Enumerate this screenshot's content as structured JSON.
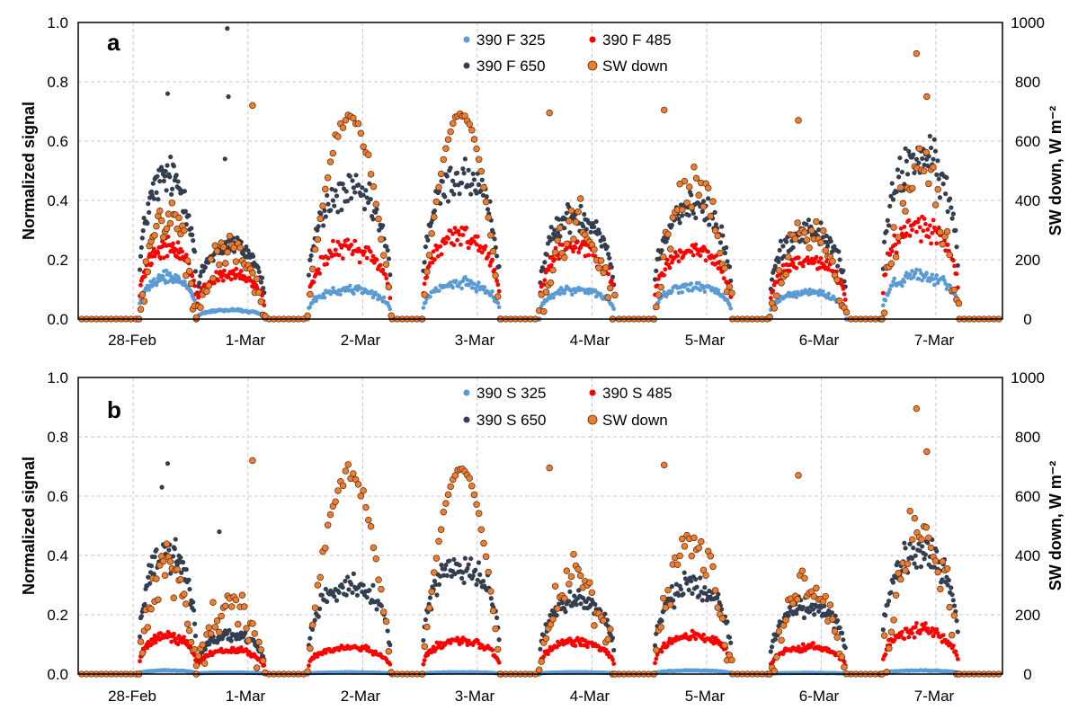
{
  "colors": {
    "s325": "#5b9bd5",
    "s485": "#ff0000",
    "s650": "#333f50",
    "sw": "#ed7d31",
    "sw_edge": "#5a2a0a",
    "grid": "#c8c8c8"
  },
  "days": [
    {
      "label": "28-Feb",
      "start": 0.05,
      "end": 0.55,
      "sw_peak": 370,
      "sw_scatter": 90,
      "s325": [
        0.14,
        0.012
      ],
      "s485": [
        0.25,
        0.13
      ],
      "s650": [
        0.48,
        0.41
      ]
    },
    {
      "label": "1-Mar",
      "start": 0.55,
      "end": 1.15,
      "sw_peak": 240,
      "sw_scatter": 80,
      "s325": [
        0.03,
        0.005
      ],
      "s485": [
        0.15,
        0.08
      ],
      "s650": [
        0.25,
        0.13
      ]
    },
    {
      "label": "2-Mar",
      "start": 1.52,
      "end": 2.25,
      "sw_peak": 680,
      "sw_scatter": 40,
      "s325": [
        0.1,
        0.006
      ],
      "s485": [
        0.24,
        0.09
      ],
      "s650": [
        0.43,
        0.3
      ]
    },
    {
      "label": "3-Mar",
      "start": 2.52,
      "end": 3.2,
      "sw_peak": 690,
      "sw_scatter": 10,
      "s325": [
        0.12,
        0.006
      ],
      "s485": [
        0.28,
        0.11
      ],
      "s650": [
        0.48,
        0.37
      ]
    },
    {
      "label": "4-Mar",
      "start": 3.54,
      "end": 4.2,
      "sw_peak": 330,
      "sw_scatter": 90,
      "s325": [
        0.1,
        0.006
      ],
      "s485": [
        0.25,
        0.11
      ],
      "s650": [
        0.35,
        0.25
      ]
    },
    {
      "label": "5-Mar",
      "start": 4.54,
      "end": 5.22,
      "sw_peak": 460,
      "sw_scatter": 90,
      "s325": [
        0.11,
        0.012
      ],
      "s485": [
        0.23,
        0.13
      ],
      "s650": [
        0.38,
        0.3
      ]
    },
    {
      "label": "6-Mar",
      "start": 5.55,
      "end": 6.22,
      "sw_peak": 300,
      "sw_scatter": 70,
      "s325": [
        0.09,
        0.004
      ],
      "s485": [
        0.2,
        0.09
      ],
      "s650": [
        0.3,
        0.23
      ]
    },
    {
      "label": "7-Mar",
      "start": 6.53,
      "end": 7.2,
      "sw_peak": 500,
      "sw_scatter": 120,
      "s325": [
        0.15,
        0.012
      ],
      "s485": [
        0.32,
        0.15
      ],
      "s650": [
        0.55,
        0.41
      ]
    }
  ],
  "chart_data": [
    {
      "type": "scatter",
      "panel_label": "a",
      "ylabel": "Normalized signal",
      "y2label": "SW down, W m⁻²",
      "ylim": [
        0,
        1.0
      ],
      "y2lim": [
        0,
        1000
      ],
      "y_ticks": [
        "0.0",
        "0.2",
        "0.4",
        "0.6",
        "0.8",
        "1.0"
      ],
      "y2_ticks": [
        "0",
        "200",
        "400",
        "600",
        "800",
        "1000"
      ],
      "x_ticks": [
        "28-Feb",
        "1-Mar",
        "2-Mar",
        "3-Mar",
        "4-Mar",
        "5-Mar",
        "6-Mar",
        "7-Mar"
      ],
      "legend": [
        "390 F 325",
        "390 F 485",
        "390 F 650",
        "SW down"
      ],
      "legend_position": "top-center",
      "grid": true,
      "series": [
        {
          "name": "390 F 325",
          "color_key": "s325",
          "axis": "left",
          "daily_peak": [
            0.14,
            0.03,
            0.1,
            0.12,
            0.1,
            0.11,
            0.09,
            0.15
          ]
        },
        {
          "name": "390 F 485",
          "color_key": "s485",
          "axis": "left",
          "daily_peak": [
            0.25,
            0.15,
            0.24,
            0.28,
            0.25,
            0.23,
            0.2,
            0.32
          ]
        },
        {
          "name": "390 F 650",
          "color_key": "s650",
          "axis": "left",
          "daily_peak": [
            0.48,
            0.25,
            0.43,
            0.48,
            0.35,
            0.38,
            0.3,
            0.55
          ]
        },
        {
          "name": "SW down",
          "color_key": "sw",
          "axis": "right",
          "daily_peak": [
            370,
            240,
            680,
            690,
            330,
            460,
            300,
            500
          ]
        }
      ],
      "outliers": [
        {
          "series": "SW down",
          "x": 1.04,
          "y": 720
        },
        {
          "series": "SW down",
          "x": 3.63,
          "y": 695
        },
        {
          "series": "SW down",
          "x": 4.63,
          "y": 705
        },
        {
          "series": "SW down",
          "x": 5.8,
          "y": 670
        },
        {
          "series": "SW down",
          "x": 6.83,
          "y": 895
        },
        {
          "series": "SW down",
          "x": 6.92,
          "y": 750
        },
        {
          "series": "390 F 650",
          "x": 0.82,
          "y": 0.98
        },
        {
          "series": "390 F 650",
          "x": 0.83,
          "y": 0.75
        },
        {
          "series": "390 F 650",
          "x": 0.3,
          "y": 0.76
        },
        {
          "series": "390 F 650",
          "x": 0.8,
          "y": 0.54
        }
      ]
    },
    {
      "type": "scatter",
      "panel_label": "b",
      "ylabel": "Normalized signal",
      "y2label": "SW down, W m⁻²",
      "ylim": [
        0,
        1.0
      ],
      "y2lim": [
        0,
        1000
      ],
      "y_ticks": [
        "0.0",
        "0.2",
        "0.4",
        "0.6",
        "0.8",
        "1.0"
      ],
      "y2_ticks": [
        "0",
        "200",
        "400",
        "600",
        "800",
        "1000"
      ],
      "x_ticks": [
        "28-Feb",
        "1-Mar",
        "2-Mar",
        "3-Mar",
        "4-Mar",
        "5-Mar",
        "6-Mar",
        "7-Mar"
      ],
      "legend": [
        "390 S 325",
        "390 S 485",
        "390 S 650",
        "SW down"
      ],
      "legend_position": "top-center",
      "grid": true,
      "series": [
        {
          "name": "390 S 325",
          "color_key": "s325",
          "axis": "left",
          "daily_peak": [
            0.012,
            0.005,
            0.006,
            0.006,
            0.006,
            0.012,
            0.004,
            0.012
          ]
        },
        {
          "name": "390 S 485",
          "color_key": "s485",
          "axis": "left",
          "daily_peak": [
            0.13,
            0.08,
            0.09,
            0.11,
            0.11,
            0.13,
            0.09,
            0.15
          ]
        },
        {
          "name": "390 S 650",
          "color_key": "s650",
          "axis": "left",
          "daily_peak": [
            0.41,
            0.13,
            0.3,
            0.37,
            0.25,
            0.3,
            0.23,
            0.41
          ]
        },
        {
          "name": "SW down",
          "color_key": "sw",
          "axis": "right",
          "daily_peak": [
            370,
            240,
            680,
            690,
            330,
            460,
            300,
            500
          ]
        }
      ],
      "outliers": [
        {
          "series": "SW down",
          "x": 1.04,
          "y": 720
        },
        {
          "series": "SW down",
          "x": 3.63,
          "y": 695
        },
        {
          "series": "SW down",
          "x": 4.63,
          "y": 705
        },
        {
          "series": "SW down",
          "x": 5.8,
          "y": 670
        },
        {
          "series": "SW down",
          "x": 6.83,
          "y": 895
        },
        {
          "series": "SW down",
          "x": 6.92,
          "y": 750
        },
        {
          "series": "390 S 650",
          "x": 0.3,
          "y": 0.71
        },
        {
          "series": "390 S 650",
          "x": 0.25,
          "y": 0.63
        },
        {
          "series": "390 S 650",
          "x": 0.75,
          "y": 0.48
        }
      ]
    }
  ]
}
